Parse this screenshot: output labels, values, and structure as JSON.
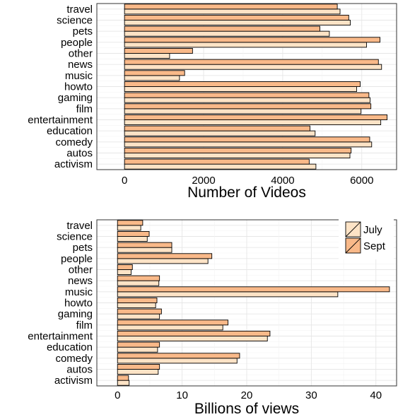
{
  "colors": {
    "july": "#fde3c6",
    "sept": "#f9b989"
  },
  "legend": {
    "items": [
      "July",
      "Sept"
    ]
  },
  "chart_data": [
    {
      "type": "bar",
      "orientation": "horizontal",
      "categories": [
        "activism",
        "autos",
        "comedy",
        "education",
        "entertainment",
        "film",
        "gaming",
        "howto",
        "music",
        "news",
        "other",
        "people",
        "pets",
        "science",
        "travel"
      ],
      "series": [
        {
          "name": "July",
          "values": [
            4840,
            5700,
            6250,
            4820,
            6480,
            5980,
            6210,
            5870,
            1390,
            6500,
            1140,
            6120,
            5180,
            5710,
            5450
          ]
        },
        {
          "name": "Sept",
          "values": [
            4670,
            5730,
            6200,
            4690,
            6640,
            6230,
            6180,
            5960,
            1520,
            6420,
            1720,
            6460,
            4940,
            5670,
            5380
          ]
        }
      ],
      "xlabel": "Number of Videos",
      "xlim": [
        -700,
        6880
      ],
      "xticks": [
        "0",
        "2000",
        "4000",
        "6000"
      ],
      "xtick_values": [
        0,
        2000,
        4000,
        6000
      ],
      "grid": true,
      "legend": "none"
    },
    {
      "type": "bar",
      "orientation": "horizontal",
      "categories": [
        "activism",
        "autos",
        "comedy",
        "education",
        "entertainment",
        "film",
        "gaming",
        "howto",
        "music",
        "news",
        "other",
        "people",
        "pets",
        "science",
        "travel"
      ],
      "series": [
        {
          "name": "July",
          "values": [
            1.8,
            6.3,
            18.5,
            6.2,
            23.2,
            16.3,
            6.5,
            5.9,
            34.1,
            6.4,
            2.1,
            14.0,
            8.4,
            4.6,
            3.6
          ]
        },
        {
          "name": "Sept",
          "values": [
            1.7,
            6.5,
            18.9,
            6.5,
            23.6,
            17.1,
            6.8,
            6.1,
            42.1,
            6.5,
            2.3,
            14.6,
            8.4,
            4.9,
            3.9
          ]
        }
      ],
      "xlabel": "Billions of views",
      "xlim": [
        -3.2,
        43.2
      ],
      "xticks": [
        "0",
        "10",
        "20",
        "30",
        "40"
      ],
      "xtick_values": [
        0,
        10,
        20,
        30,
        40
      ],
      "grid": true,
      "legend": "top-right"
    }
  ]
}
